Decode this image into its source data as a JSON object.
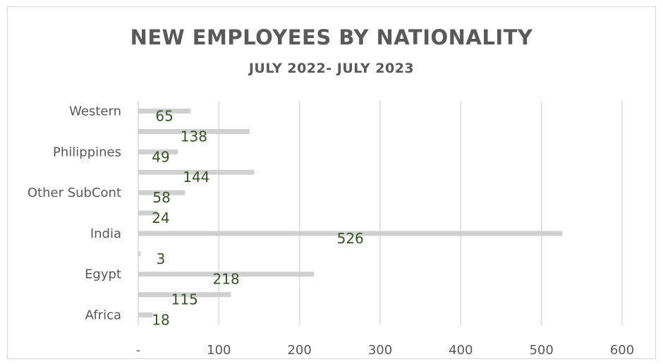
{
  "chart_data": {
    "type": "bar",
    "orientation": "horizontal",
    "title": "NEW EMPLOYEES BY NATIONALITY",
    "subtitle": "JULY 2022- JULY 2023",
    "categories": [
      "Africa",
      "",
      "Egypt",
      "",
      "India",
      "",
      "Other SubCont",
      "",
      "Philippines",
      "",
      "Western"
    ],
    "values": [
      18,
      115,
      218,
      3,
      526,
      24,
      58,
      144,
      49,
      138,
      65
    ],
    "data_labels": [
      "18",
      "115",
      "218",
      "3",
      "526",
      "24",
      "58",
      "144",
      "49",
      "138",
      "65"
    ],
    "x_ticks": [
      "-",
      "100",
      "200",
      "300",
      "400",
      "500",
      "600"
    ],
    "xlim": [
      0,
      600
    ],
    "grid": true,
    "legend": "none",
    "colors": {
      "bar": "#d0d0d0",
      "grid": "#d9d9d9",
      "label": "#375623",
      "text": "#595959"
    }
  }
}
